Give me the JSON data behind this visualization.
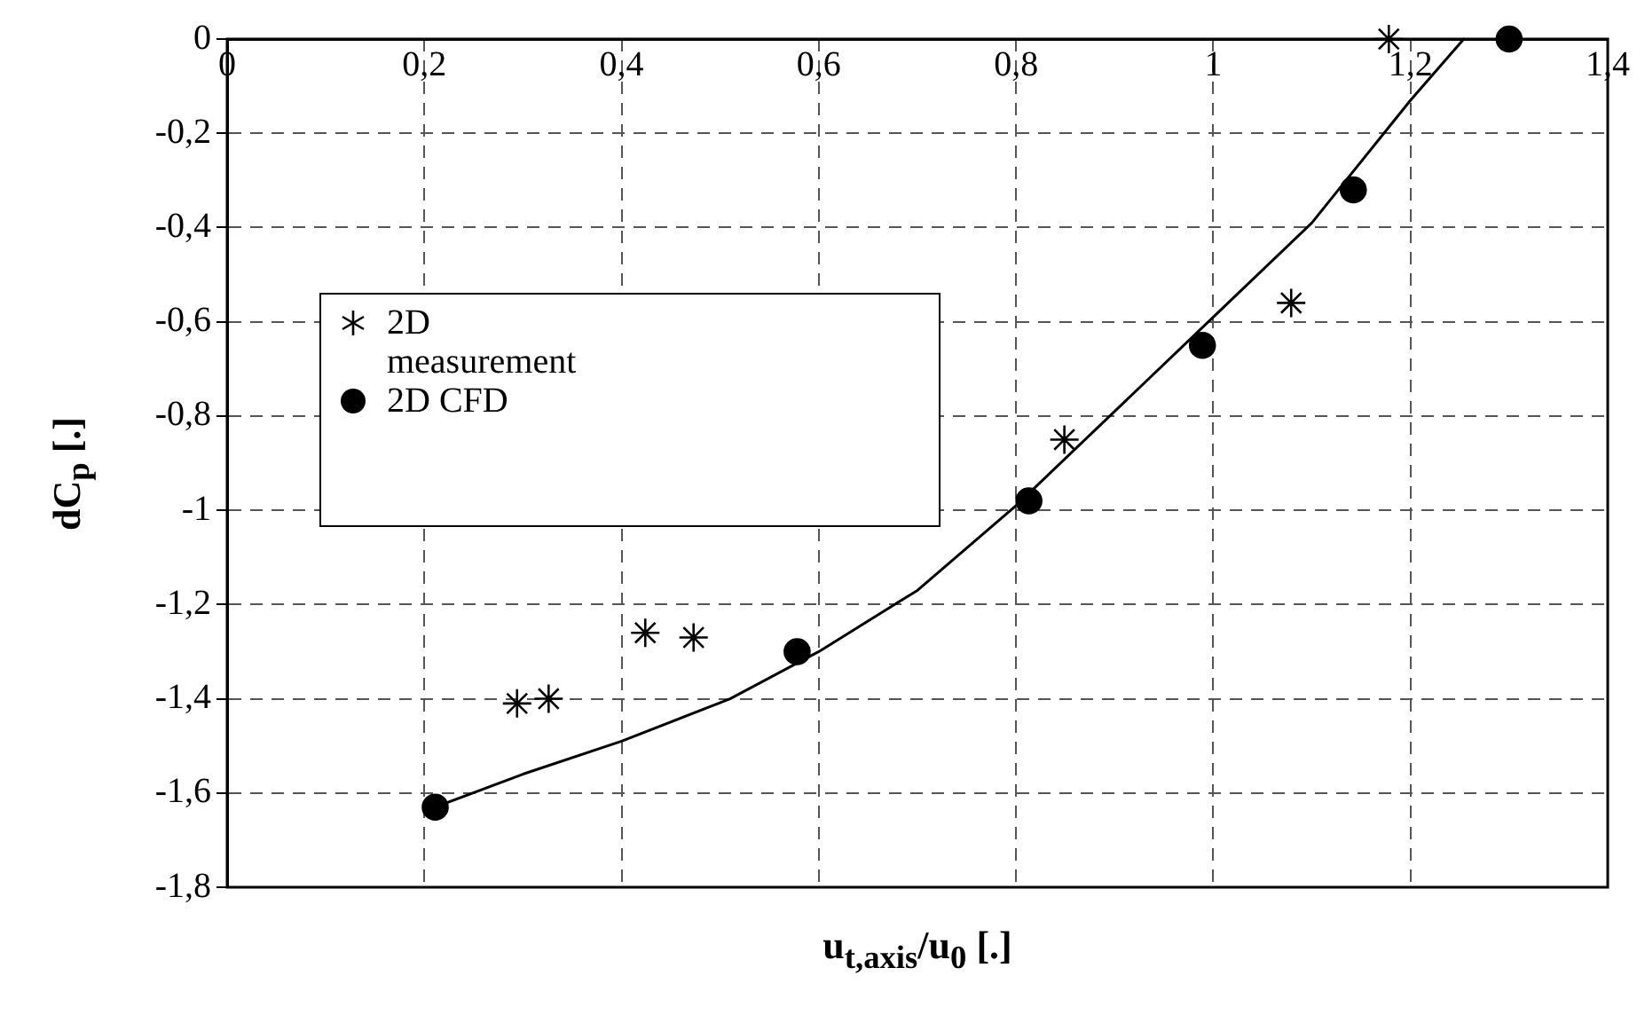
{
  "chart_data": {
    "type": "scatter",
    "xlabel": "u$_{t,axis}$/u$_{0}$ [.]",
    "ylabel": "dC$_{p}$ [.]",
    "xlim": [
      0,
      1.4
    ],
    "xticks": [
      0,
      {
        "value": 0.2,
        "label": "0,2"
      },
      {
        "value": 0.4,
        "label": "0,4"
      },
      {
        "value": 0.6,
        "label": "0,6"
      },
      {
        "value": 0.8,
        "label": "0,8"
      },
      1,
      {
        "value": 1.2,
        "label": "1,2"
      },
      {
        "value": 1.4,
        "label": "1,4"
      }
    ],
    "ylim": [
      -1.8,
      0
    ],
    "yticks": [
      0,
      {
        "value": -0.2,
        "label": "-0,2"
      },
      {
        "value": -0.4,
        "label": "-0,4"
      },
      {
        "value": -0.6,
        "label": "-0,6"
      },
      {
        "value": -0.8,
        "label": "-0,8"
      },
      -1,
      {
        "value": -1.2,
        "label": "-1,2"
      },
      {
        "value": -1.4,
        "label": "-1,4"
      },
      {
        "value": -1.6,
        "label": "-1,6"
      },
      {
        "value": -1.8,
        "label": "-1,8"
      }
    ],
    "grid": true,
    "legend": "top left",
    "series": [
      {
        "name": "2D measurement",
        "type": "scatter",
        "marker": "cross",
        "color": "#000000",
        "x": [
          0.294,
          0.326,
          0.424,
          0.473,
          0.849,
          1.079,
          1.178
        ],
        "values": [
          -1.41,
          -1.4,
          -1.26,
          -1.27,
          -0.85,
          -0.56,
          0
        ]
      },
      {
        "name": "2D CFD",
        "type": "scatter",
        "marker": "circle",
        "color": "#000000",
        "x": [
          0.211,
          0.578,
          0.813,
          0.989,
          1.142,
          1.3
        ],
        "values": [
          -1.63,
          -1.3,
          -0.98,
          -0.65,
          -0.32,
          0
        ]
      },
      {
        "type": "line",
        "marker": "none",
        "line_style": "solid",
        "color": "#000000",
        "x": [
          0.211,
          0.3,
          0.4,
          0.51,
          0.6,
          0.7,
          0.8,
          0.9,
          1.0,
          1.1,
          1.2,
          1.254
        ],
        "values": [
          -1.63,
          -1.56,
          -1.49,
          -1.4,
          -1.3,
          -1.17,
          -0.99,
          -0.79,
          -0.59,
          -0.39,
          -0.13,
          0
        ]
      }
    ]
  }
}
